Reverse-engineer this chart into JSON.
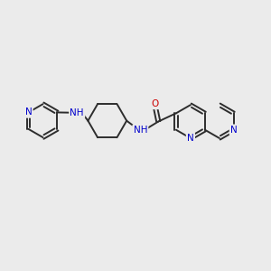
{
  "bg_color": "#ebebeb",
  "bond_color": "#2d2d2d",
  "N_color": "#0000cc",
  "O_color": "#cc0000",
  "bond_width": 1.4,
  "font_size_atom": 7.5,
  "fig_w": 3.0,
  "fig_h": 3.0,
  "dpi": 100,
  "xlim": [
    0,
    10
  ],
  "ylim": [
    0,
    10
  ]
}
